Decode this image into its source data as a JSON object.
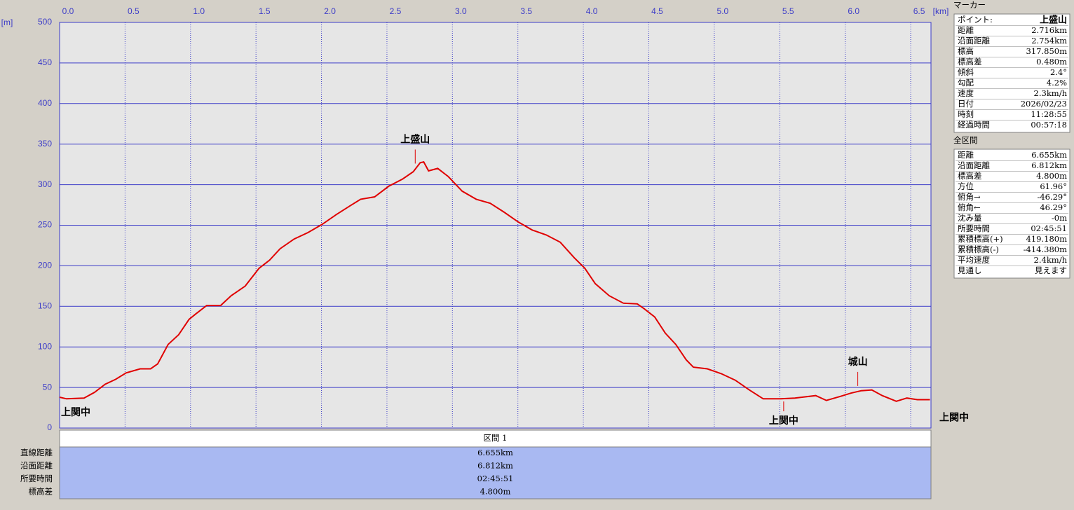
{
  "chart_data": {
    "type": "line",
    "x_label": "[km]",
    "y_label": "[m]",
    "x": [
      0,
      0.053,
      0.187,
      0.267,
      0.348,
      0.428,
      0.508,
      0.615,
      0.695,
      0.749,
      0.829,
      0.909,
      0.989,
      1.043,
      1.123,
      1.23,
      1.31,
      1.417,
      1.524,
      1.604,
      1.684,
      1.791,
      1.898,
      2.005,
      2.112,
      2.219,
      2.299,
      2.406,
      2.513,
      2.62,
      2.701,
      2.754,
      2.781,
      2.818,
      2.888,
      2.968,
      3.075,
      3.182,
      3.289,
      3.396,
      3.503,
      3.61,
      3.717,
      3.824,
      3.93,
      4.011,
      4.091,
      4.198,
      4.305,
      4.412,
      4.465,
      4.545,
      4.626,
      4.706,
      4.786,
      4.84,
      4.947,
      5.053,
      5.16,
      5.267,
      5.374,
      5.508,
      5.615,
      5.775,
      5.856,
      5.963,
      6.043,
      6.123,
      6.203,
      6.283,
      6.39,
      6.471,
      6.551,
      6.647
    ],
    "series": [
      {
        "color": "#e00000",
        "values": [
          38,
          36,
          37,
          44,
          54,
          60,
          68,
          73,
          73,
          79,
          103,
          115,
          134,
          141,
          151,
          151,
          163,
          175,
          197,
          207,
          221,
          233,
          241,
          251,
          263,
          274,
          282,
          285,
          298,
          307,
          316,
          327,
          328,
          317,
          320,
          310,
          292,
          282,
          277,
          266,
          254,
          244,
          238,
          229,
          210,
          197,
          178,
          163,
          154,
          153,
          147,
          137,
          117,
          103,
          84,
          75,
          73,
          67,
          59,
          47,
          36,
          36,
          37,
          40,
          34,
          39,
          43,
          46,
          47,
          40,
          33,
          37,
          35,
          35
        ]
      }
    ],
    "xlim": [
      0,
      6.655
    ],
    "xticks": [
      {
        "value": 0,
        "label": "0.0"
      },
      0.5,
      {
        "value": 1,
        "label": "1.0"
      },
      1.5,
      {
        "value": 2,
        "label": "2.0"
      },
      2.5,
      {
        "value": 3,
        "label": "3.0"
      },
      3.5,
      {
        "value": 4,
        "label": "4.0"
      },
      4.5,
      {
        "value": 5,
        "label": "5.0"
      },
      5.5,
      {
        "value": 6,
        "label": "6.0"
      },
      6.5
    ],
    "ylim": [
      0,
      500
    ],
    "yticks": [
      0,
      50,
      100,
      150,
      200,
      250,
      300,
      350,
      400,
      450,
      500
    ],
    "grid": true,
    "annotations": [
      {
        "text": "上盛山",
        "x": 2.716,
        "position": "above"
      },
      {
        "text": "城山",
        "x": 6.096,
        "position": "above"
      },
      {
        "text": "上関中",
        "x": 0,
        "position": "below"
      },
      {
        "text": "上関中",
        "x": 5.53,
        "position": "below"
      },
      {
        "text": "上関中",
        "x": 6.655,
        "position": "right"
      }
    ]
  },
  "section_table": {
    "header": "区間 1",
    "labels": [
      "直線距離",
      "沿面距離",
      "所要時間",
      "標高差"
    ],
    "values": [
      "6.655km",
      "6.812km",
      "02:45:51",
      "4.800m"
    ]
  },
  "marker_panel": {
    "title": "マーカー",
    "rows": [
      [
        "ポイント:",
        "上盛山"
      ],
      [
        "距離",
        "2.716km"
      ],
      [
        "沿面距離",
        "2.754km"
      ],
      [
        "標高",
        "317.850m"
      ],
      [
        "標高差",
        "0.480m"
      ],
      [
        "傾斜",
        "2.4°"
      ],
      [
        "勾配",
        "4.2%"
      ],
      [
        "速度",
        "2.3km/h"
      ],
      [
        "日付",
        "2026/02/23"
      ],
      [
        "時刻",
        "11:28:55"
      ],
      [
        "経過時間",
        "00:57:18"
      ]
    ]
  },
  "total_panel": {
    "title": "全区間",
    "rows": [
      [
        "距離",
        "6.655km"
      ],
      [
        "沿面距離",
        "6.812km"
      ],
      [
        "標高差",
        "4.800m"
      ],
      [
        "方位",
        "61.96°"
      ],
      [
        "俯角→",
        "-46.29°"
      ],
      [
        "俯角←",
        "46.29°"
      ],
      [
        "沈み量",
        "-0m"
      ],
      [
        "所要時間",
        "02:45:51"
      ],
      [
        "累積標高(+)",
        "419.180m"
      ],
      [
        "累積標高(-)",
        "-414.380m"
      ],
      [
        "平均速度",
        "2.4km/h"
      ],
      [
        "見通し",
        "見えます"
      ]
    ]
  }
}
